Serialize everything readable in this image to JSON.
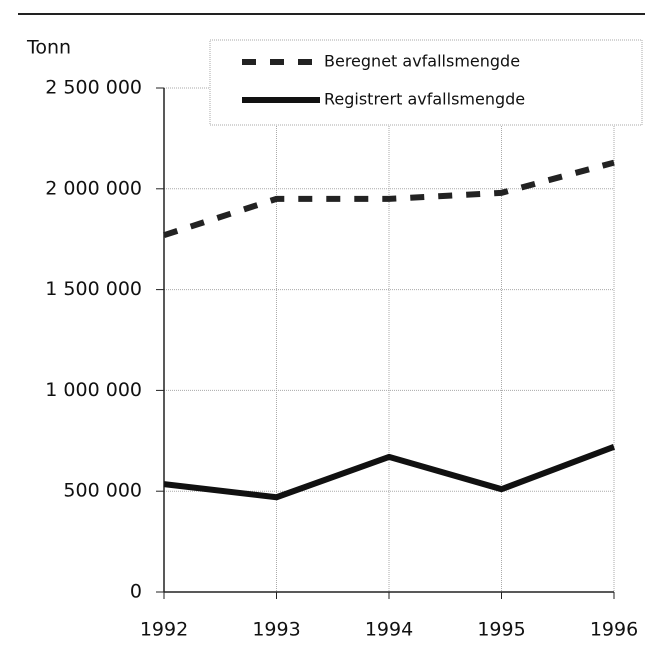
{
  "chart_data": {
    "type": "line",
    "y_label": "Tonn",
    "categories": [
      "1992",
      "1993",
      "1994",
      "1995",
      "1996"
    ],
    "series": [
      {
        "name": "Beregnet avfallsmengde",
        "color": "#222222",
        "style": "dashed",
        "values": [
          1770000,
          1950000,
          1950000,
          1980000,
          2130000
        ]
      },
      {
        "name": "Registrert avfallsmengde",
        "color": "#111111",
        "style": "solid",
        "values": [
          535000,
          470000,
          670000,
          510000,
          720000
        ]
      }
    ],
    "ylim": [
      0,
      2500000
    ],
    "yticks": [
      0,
      {
        "value": 500000,
        "label": "500 000"
      },
      {
        "value": 1000000,
        "label": "1 000 000"
      },
      {
        "value": 1500000,
        "label": "1 500 000"
      },
      {
        "value": 2000000,
        "label": "2 000 000"
      },
      {
        "value": 2500000,
        "label": "2 500 000"
      }
    ],
    "grid": true,
    "legend": "top"
  }
}
